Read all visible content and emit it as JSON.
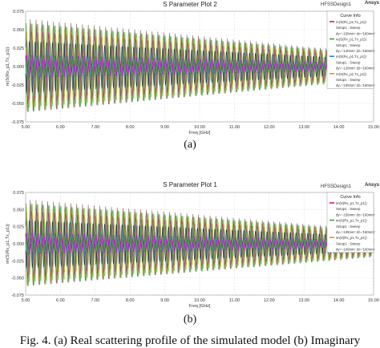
{
  "brand": "Ansys",
  "figure_caption": "Fig. 4. (a) Real scattering profile of the simulated model (b) Imaginary",
  "chart_data": [
    {
      "type": "line",
      "title": "S Parameter Plot 2",
      "design_name": "HFSSDesign1",
      "panel_letter": "(a)",
      "xlabel": "Freq [GHz]",
      "ylabel": "re(S(Rx_p1,Tx_p1))",
      "xlim": [
        5.0,
        15.0
      ],
      "ylim": [
        -0.075,
        0.075
      ],
      "x_ticks": [
        "5.00",
        "6.00",
        "7.00",
        "8.00",
        "9.00",
        "10.00",
        "11.00",
        "12.00",
        "13.00",
        "14.00",
        "15.00"
      ],
      "y_ticks": [
        "0.075",
        "0.050",
        "0.025",
        "0.000",
        "-0.025",
        "-0.050",
        "-0.075"
      ],
      "grid": true,
      "legend_position": "top-right",
      "legend_title": "Curve Info",
      "legend_entries": [
        {
          "text": "re(S(Rx_p1,Tx_p1))",
          "color": "#d81b60"
        },
        {
          "text": "Setup1 : Sweep",
          "color": null
        },
        {
          "text": "dy='-150mm' dz='160mm'",
          "color": null
        },
        {
          "text": "re(S(Rx_p1,Tx_p1))",
          "color": "#43a047"
        },
        {
          "text": "Setup1 : Sweep",
          "color": null
        },
        {
          "text": "dy='-120mm' dz='160mm'",
          "color": null
        },
        {
          "text": "re(S(Rx_p1,Tx_p1))",
          "color": "#1e88e5"
        },
        {
          "text": "Setup1 : Sweep",
          "color": null
        },
        {
          "text": "dy='-120mm' dz='160mm'",
          "color": null
        },
        {
          "text": "re(S(Rx_p1,Tx_p1))",
          "color": "#fb8c00"
        },
        {
          "text": "Setup1 : Sweep",
          "color": null
        },
        {
          "text": "dy='-100mm' dz='160mm'",
          "color": null
        }
      ],
      "series_colors": [
        "#00bcd4",
        "#ff9800",
        "#8bc34a",
        "#1a237e",
        "#e91e63",
        "#4caf50",
        "#ffeb3b",
        "#9c27b0",
        "#795548",
        "#2196f3",
        "#c0ca33",
        "#111111"
      ],
      "highlight_colors": [
        "#d500f9",
        "#43a047"
      ],
      "envelope": {
        "start_amplitude": 0.065,
        "end_amplitude": 0.018,
        "peaks": 60
      }
    },
    {
      "type": "line",
      "title": "S Parameter Plot 1",
      "design_name": "HFSSDesign1",
      "panel_letter": "(b)",
      "xlabel": "Freq [GHz]",
      "ylabel": "im(S(Rx_p1,Tx_p1))",
      "xlim": [
        5.0,
        15.0
      ],
      "ylim": [
        -0.075,
        0.075
      ],
      "x_ticks": [
        "5.00",
        "6.00",
        "7.00",
        "8.00",
        "9.00",
        "10.00",
        "11.00",
        "12.00",
        "13.00",
        "14.00",
        "15.00"
      ],
      "y_ticks": [
        "0.075",
        "0.050",
        "0.025",
        "0.000",
        "-0.025",
        "-0.050",
        "-0.075"
      ],
      "grid": true,
      "legend_position": "top-right",
      "legend_title": "Curve Info",
      "legend_entries": [
        {
          "text": "im(S(Rx_p1,Tx_p1))",
          "color": "#d81b60"
        },
        {
          "text": "Setup1 : Sweep",
          "color": null
        },
        {
          "text": "dy='-150mm' dz='160mm'",
          "color": null
        },
        {
          "text": "im(S(Rx_p1,Tx_p1))",
          "color": "#43a047"
        },
        {
          "text": "Setup1 : Sweep",
          "color": null
        },
        {
          "text": "dy='-135mm' dz='160mm'",
          "color": null
        },
        {
          "text": "im(S(Rx_p1,Tx_p1))",
          "color": "#fb8c00"
        },
        {
          "text": "Setup1 : Sweep",
          "color": null
        },
        {
          "text": "dy='-100mm' dz='160mm'",
          "color": null
        }
      ],
      "series_colors": [
        "#00bcd4",
        "#ff9800",
        "#8bc34a",
        "#1a237e",
        "#e91e63",
        "#4caf50",
        "#ffeb3b",
        "#9c27b0",
        "#795548",
        "#2196f3",
        "#c0ca33",
        "#111111"
      ],
      "highlight_colors": [
        "#d500f9",
        "#43a047"
      ],
      "envelope": {
        "start_amplitude": 0.065,
        "end_amplitude": 0.02,
        "peaks": 60
      }
    }
  ]
}
